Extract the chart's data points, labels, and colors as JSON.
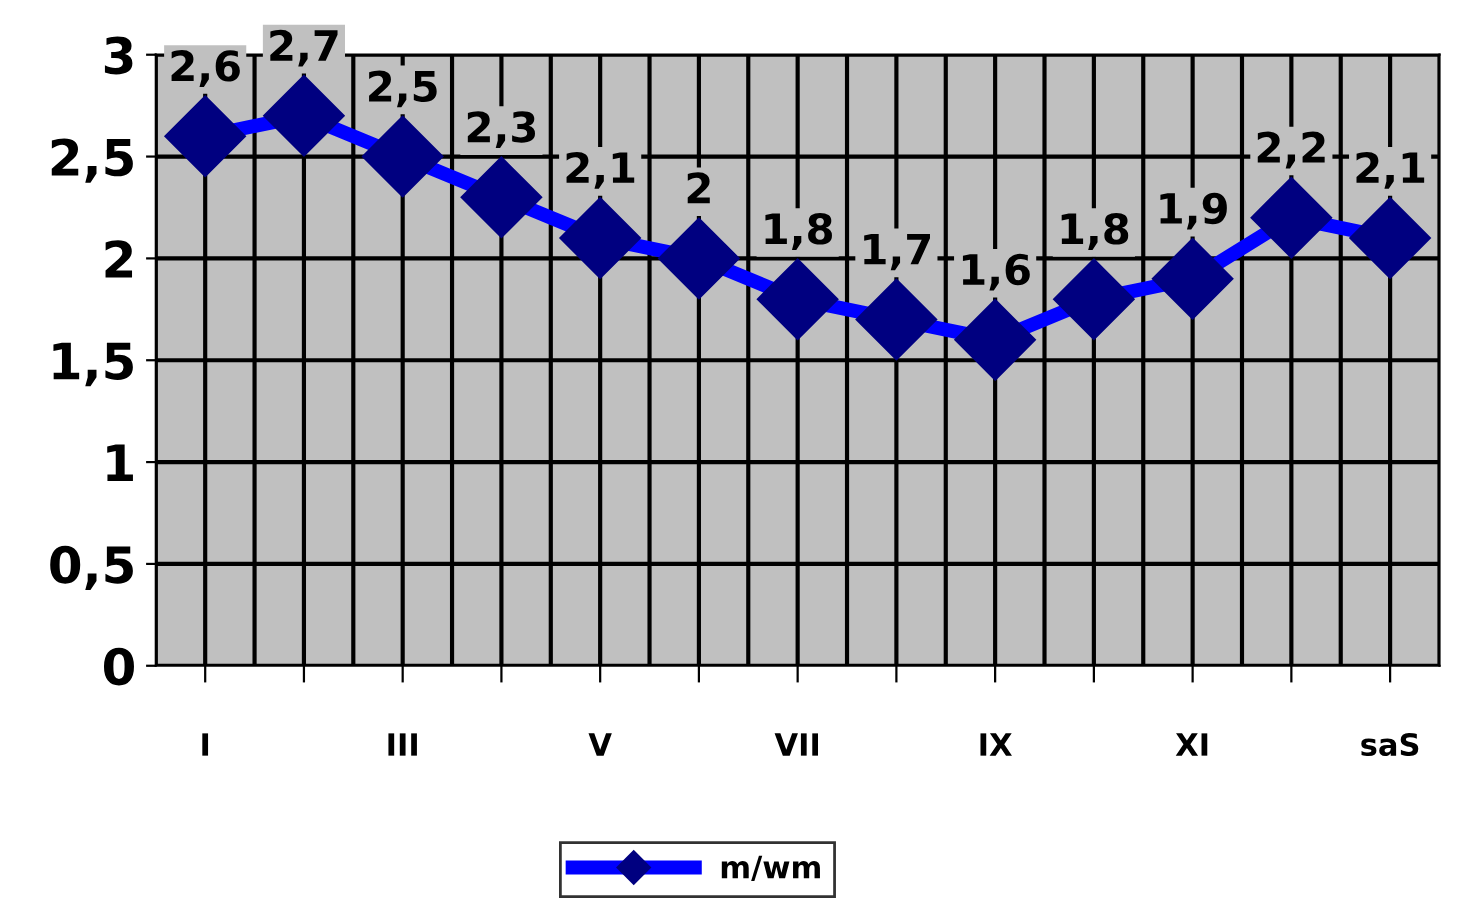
{
  "chart_data": {
    "type": "line",
    "categories": [
      "I",
      null,
      "III",
      null,
      "V",
      null,
      "VII",
      null,
      "IX",
      null,
      "XI",
      null,
      "saS"
    ],
    "series": [
      {
        "name": "m/wm",
        "color": "#0000ff",
        "values": [
          2.6,
          2.7,
          2.5,
          2.3,
          2.1,
          2.0,
          1.8,
          1.7,
          1.6,
          1.8,
          1.9,
          2.2,
          2.1
        ]
      }
    ],
    "ylim": [
      0,
      3
    ],
    "yticks": [
      {
        "value": 0,
        "label": "0"
      },
      {
        "value": 0.5,
        "label": "0,5"
      },
      {
        "value": 1,
        "label": "1"
      },
      {
        "value": 1.5,
        "label": "1,5"
      },
      {
        "value": 2,
        "label": "2"
      },
      {
        "value": 2.5,
        "label": "2,5"
      },
      {
        "value": 3,
        "label": "3"
      }
    ],
    "value_labels": [
      "2,6",
      "2,7",
      "2,5",
      "2,3",
      "2,1",
      "2",
      "1,8",
      "1,7",
      "1,6",
      "1,8",
      "1,9",
      "2,2",
      "2,1"
    ],
    "marker": "diamond",
    "line_style": "solid",
    "grid": true,
    "legend": "bottom"
  }
}
